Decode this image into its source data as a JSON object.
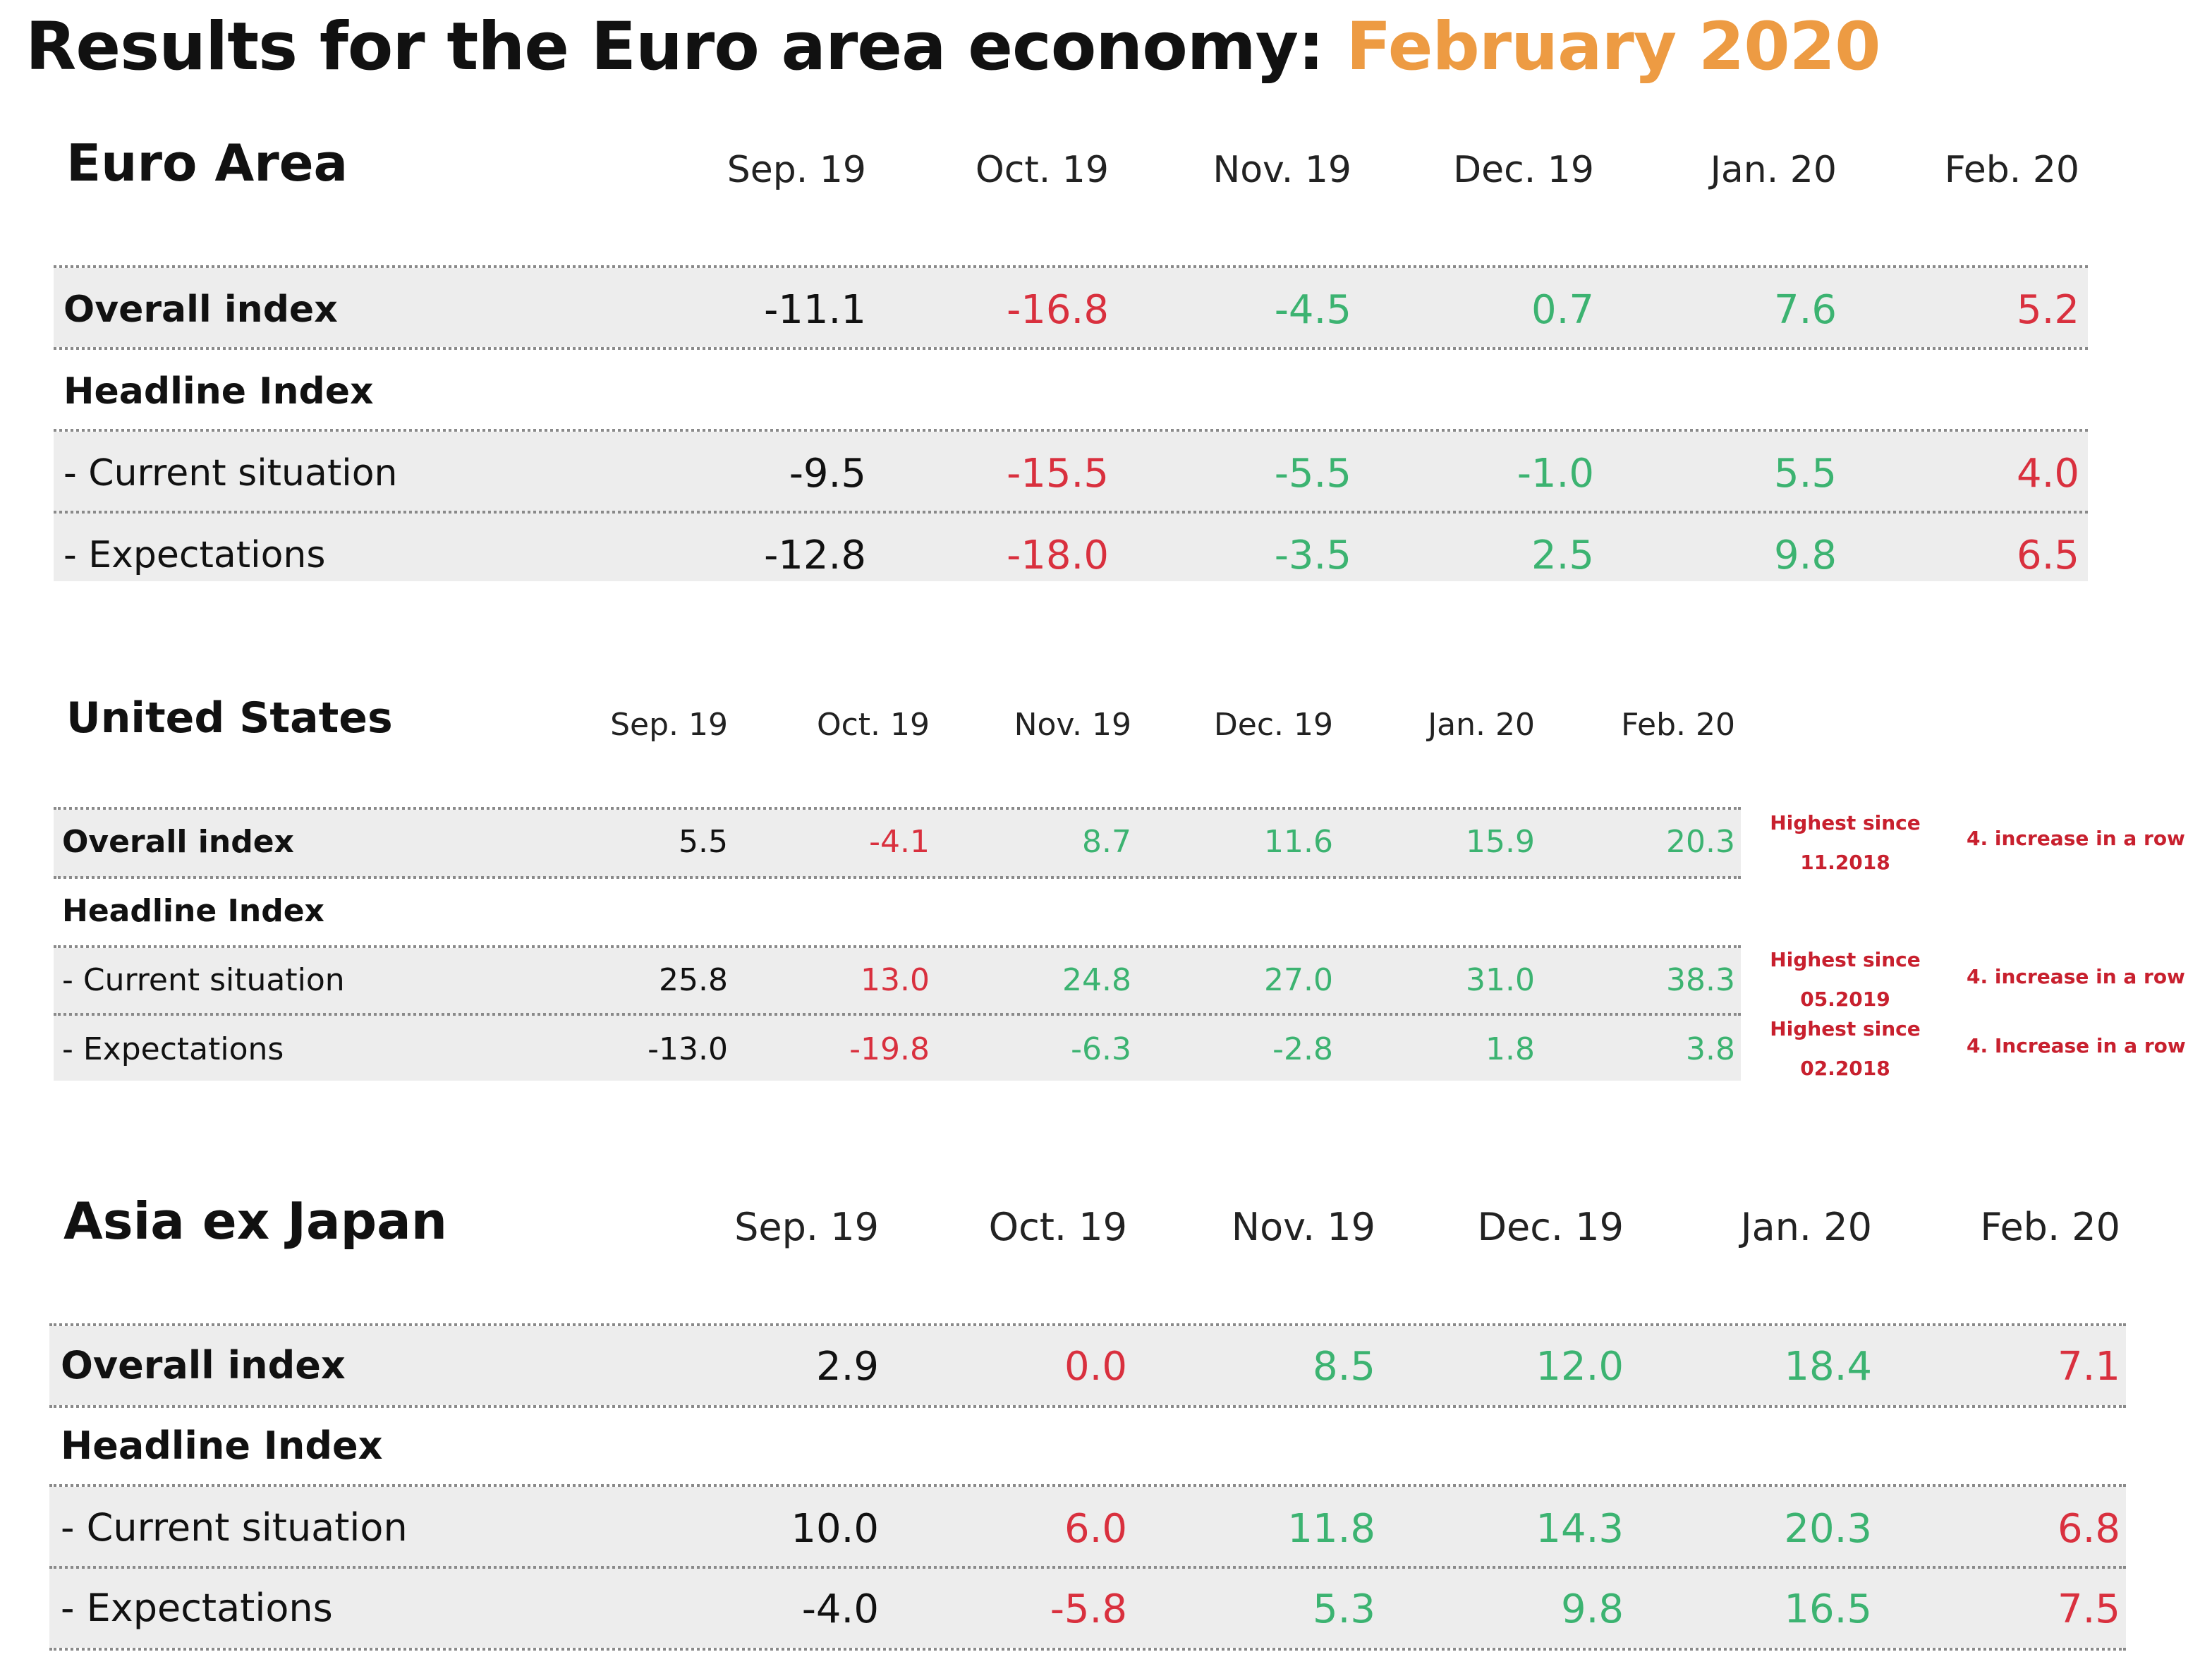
{
  "title": {
    "main": "Results for the Euro area economy:",
    "accent": "February 2020"
  },
  "colors": {
    "title_accent": "#ED9B43",
    "positive": "#3CB371",
    "negative": "#D9303E",
    "neutral": "#111111",
    "note": "#C8202E",
    "row_shade": "#EDEDED"
  },
  "euro_area": {
    "name": "Euro Area",
    "months": [
      "Sep. 19",
      "Oct. 19",
      "Nov. 19",
      "Dec. 19",
      "Jan. 20",
      "Feb. 20"
    ],
    "rows": [
      {
        "label": "Overall index",
        "values": [
          "-11.1",
          "-16.8",
          "-4.5",
          "0.7",
          "7.6",
          "5.2"
        ],
        "colors": [
          "neu",
          "neg",
          "pos",
          "pos",
          "pos",
          "neg"
        ]
      },
      {
        "label": "Headline Index"
      },
      {
        "label": "- Current situation",
        "values": [
          "-9.5",
          "-15.5",
          "-5.5",
          "-1.0",
          "5.5",
          "4.0"
        ],
        "colors": [
          "neu",
          "neg",
          "pos",
          "pos",
          "pos",
          "neg"
        ]
      },
      {
        "label": "- Expectations",
        "values": [
          "-12.8",
          "-18.0",
          "-3.5",
          "2.5",
          "9.8",
          "6.5"
        ],
        "colors": [
          "neu",
          "neg",
          "pos",
          "pos",
          "pos",
          "neg"
        ]
      }
    ]
  },
  "united_states": {
    "name": "United States",
    "months": [
      "Sep. 19",
      "Oct. 19",
      "Nov. 19",
      "Dec. 19",
      "Jan. 20",
      "Feb. 20"
    ],
    "rows": [
      {
        "label": "Overall index",
        "values": [
          "5.5",
          "-4.1",
          "8.7",
          "11.6",
          "15.9",
          "20.3"
        ],
        "colors": [
          "neu",
          "neg",
          "pos",
          "pos",
          "pos",
          "pos"
        ]
      },
      {
        "label": "Headline Index"
      },
      {
        "label": "- Current situation",
        "values": [
          "25.8",
          "13.0",
          "24.8",
          "27.0",
          "31.0",
          "38.3"
        ],
        "colors": [
          "neu",
          "neg",
          "pos",
          "pos",
          "pos",
          "pos"
        ]
      },
      {
        "label": "- Expectations",
        "values": [
          "-13.0",
          "-19.8",
          "-6.3",
          "-2.8",
          "1.8",
          "3.8"
        ],
        "colors": [
          "neu",
          "neg",
          "pos",
          "pos",
          "pos",
          "pos"
        ]
      }
    ],
    "notes": [
      {
        "line1": "Highest since",
        "line2": "11.2018",
        "streak": "4. increase in a row"
      },
      {
        "line1": "Highest since",
        "line2": "05.2019",
        "streak": "4. increase in a row"
      },
      {
        "line1": "Highest since",
        "line2": "02.2018",
        "streak": "4. Increase in a row"
      }
    ]
  },
  "asia_ex_japan": {
    "name": "Asia ex Japan",
    "months": [
      "Sep. 19",
      "Oct. 19",
      "Nov. 19",
      "Dec. 19",
      "Jan. 20",
      "Feb. 20"
    ],
    "rows": [
      {
        "label": "Overall index",
        "values": [
          "2.9",
          "0.0",
          "8.5",
          "12.0",
          "18.4",
          "7.1"
        ],
        "colors": [
          "neu",
          "neg",
          "pos",
          "pos",
          "pos",
          "neg"
        ]
      },
      {
        "label": "Headline Index"
      },
      {
        "label": "- Current situation",
        "values": [
          "10.0",
          "6.0",
          "11.8",
          "14.3",
          "20.3",
          "6.8"
        ],
        "colors": [
          "neu",
          "neg",
          "pos",
          "pos",
          "pos",
          "neg"
        ]
      },
      {
        "label": "- Expectations",
        "values": [
          "-4.0",
          "-5.8",
          "5.3",
          "9.8",
          "16.5",
          "7.5"
        ],
        "colors": [
          "neu",
          "neg",
          "pos",
          "pos",
          "pos",
          "neg"
        ]
      }
    ]
  }
}
